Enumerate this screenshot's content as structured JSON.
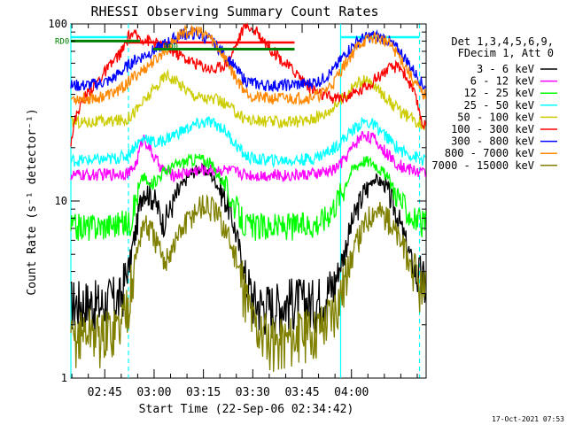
{
  "chart_data": {
    "type": "line",
    "title": "RHESSI Observing Summary Count Rates",
    "xlabel": "Start Time (22-Sep-06 02:34:42)",
    "ylabel": "Count Rate (s⁻¹ detector⁻¹)",
    "yscale": "log",
    "ylim": [
      1,
      100
    ],
    "xlim_minutes_after_start": [
      0,
      108
    ],
    "x_unit": "minutes after 02:34:42",
    "x_ticks": [
      {
        "label": "02:45",
        "value": 10.3
      },
      {
        "label": "03:00",
        "value": 25.3
      },
      {
        "label": "03:15",
        "value": 40.3
      },
      {
        "label": "03:30",
        "value": 55.3
      },
      {
        "label": "03:45",
        "value": 70.3
      },
      {
        "label": "04:00",
        "value": 85.3
      }
    ],
    "y_ticks": [
      {
        "label": "1",
        "value": 1
      },
      {
        "label": "10",
        "value": 10
      },
      {
        "label": "100",
        "value": 100
      }
    ],
    "legend_title": "Det 1,3,4,5,6,9,",
    "legend_subtitle": "FDecim 1, Att 0",
    "legend_position": "right",
    "series": [
      {
        "name": "3 - 6 keV",
        "color": "#000000",
        "x": [
          0,
          3,
          6,
          9,
          12,
          15,
          18,
          20,
          22,
          25,
          28,
          30,
          33,
          36,
          39,
          42,
          45,
          48,
          51,
          53,
          56,
          59,
          62,
          65,
          68,
          71,
          74,
          77,
          80,
          83,
          86,
          89,
          92,
          95,
          98,
          101,
          104,
          107
        ],
        "y": [
          2.7,
          2.7,
          2.7,
          2.6,
          2.8,
          2.8,
          4.5,
          7.2,
          11.8,
          10.5,
          7.5,
          8.8,
          11.5,
          14.0,
          15.3,
          14.5,
          12.0,
          9.2,
          5.6,
          3.6,
          2.7,
          2.6,
          2.6,
          2.7,
          2.8,
          2.7,
          2.7,
          3.0,
          3.4,
          5.0,
          8.0,
          11.0,
          13.5,
          12.5,
          9.5,
          6.5,
          4.2,
          3.5
        ]
      },
      {
        "name": "6 - 12 keV",
        "color": "#ff00ff",
        "x": [
          0,
          6,
          12,
          18,
          20,
          22,
          25,
          28,
          31,
          35,
          39,
          43,
          47,
          51,
          53,
          56,
          62,
          68,
          71,
          74,
          77,
          80,
          83,
          86,
          89,
          92,
          95,
          98,
          101,
          104,
          107
        ],
        "y": [
          14.0,
          14.0,
          14.2,
          14.5,
          16.5,
          23.0,
          18.0,
          15.0,
          14.0,
          14.5,
          15.0,
          15.0,
          15.0,
          14.5,
          14.2,
          14.0,
          14.0,
          14.0,
          14.1,
          14.2,
          14.5,
          15.0,
          17.0,
          20.5,
          24.0,
          22.5,
          19.5,
          17.0,
          15.5,
          15.0,
          14.5
        ]
      },
      {
        "name": "12 - 25 keV",
        "color": "#00ff00",
        "x": [
          0,
          6,
          12,
          18,
          20,
          22,
          24,
          28,
          32,
          36,
          39,
          42,
          45,
          48,
          51,
          53,
          56,
          62,
          68,
          71,
          74,
          77,
          80,
          83,
          86,
          89,
          92,
          95,
          98,
          101,
          104,
          107
        ],
        "y": [
          7.2,
          7.2,
          7.4,
          7.6,
          10.5,
          14.0,
          12.0,
          14.5,
          16.0,
          17.0,
          17.5,
          16.5,
          14.0,
          11.0,
          8.5,
          7.3,
          7.2,
          7.2,
          7.3,
          7.3,
          7.5,
          8.0,
          9.5,
          12.0,
          15.5,
          17.0,
          16.5,
          14.5,
          12.0,
          9.5,
          8.0,
          7.5
        ]
      },
      {
        "name": "25 - 50 keV",
        "color": "#00ffff",
        "x": [
          0,
          6,
          12,
          17,
          20,
          23,
          26,
          30,
          34,
          38,
          42,
          46,
          50,
          53,
          56,
          62,
          68,
          71,
          74,
          77,
          80,
          83,
          86,
          89,
          92,
          95,
          98,
          101,
          104,
          107
        ],
        "y": [
          17.0,
          17.0,
          17.2,
          18.0,
          21.0,
          23.0,
          21.0,
          23.0,
          25.0,
          27.0,
          28.0,
          26.0,
          21.0,
          18.0,
          17.2,
          17.0,
          17.0,
          17.2,
          17.5,
          18.5,
          20.0,
          22.5,
          25.5,
          28.0,
          27.0,
          24.0,
          21.0,
          19.0,
          18.0,
          17.0
        ]
      },
      {
        "name": "50 - 100 keV",
        "color": "#cccc00",
        "x": [
          0,
          6,
          12,
          17,
          20,
          23,
          26,
          29,
          33,
          37,
          41,
          45,
          49,
          52,
          55,
          62,
          68,
          71,
          74,
          77,
          80,
          83,
          86,
          89,
          92,
          95,
          98,
          101,
          104,
          107
        ],
        "y": [
          28.0,
          28.0,
          28.2,
          29.0,
          33.0,
          38.0,
          44.0,
          52.0,
          46.0,
          40.0,
          38.0,
          37.0,
          33.0,
          30.0,
          28.5,
          28.0,
          28.0,
          28.5,
          29.5,
          31.0,
          34.0,
          39.0,
          45.0,
          48.0,
          45.0,
          40.0,
          35.0,
          31.0,
          29.0,
          27.0
        ]
      },
      {
        "name": "100 - 300 keV",
        "color": "#ff0000",
        "x": [
          0,
          2,
          4,
          8,
          12,
          16,
          18,
          20,
          24,
          28,
          32,
          36,
          40,
          44,
          48,
          51,
          53,
          57,
          61,
          65,
          69,
          72,
          76,
          80,
          84,
          88,
          92,
          96,
          100,
          104,
          107
        ],
        "y": [
          22.0,
          32.0,
          38.0,
          47.0,
          58.0,
          72.0,
          88.0,
          85.0,
          80.0,
          75.0,
          69.0,
          62.0,
          58.0,
          55.0,
          62.0,
          82.0,
          100.0,
          88.0,
          72.0,
          60.0,
          52.0,
          45.0,
          40.0,
          38.0,
          39.0,
          42.0,
          48.0,
          55.0,
          58.0,
          42.0,
          27.0
        ]
      },
      {
        "name": "300 - 800 keV",
        "color": "#0000ff",
        "x": [
          0,
          4,
          8,
          12,
          16,
          19,
          22,
          26,
          30,
          34,
          38,
          42,
          46,
          50,
          53,
          56,
          60,
          64,
          68,
          72,
          76,
          80,
          84,
          88,
          92,
          96,
          100,
          104,
          107
        ],
        "y": [
          45.0,
          45.0,
          46.0,
          48.0,
          55.0,
          62.0,
          66.0,
          72.0,
          80.0,
          88.0,
          88.0,
          82.0,
          70.0,
          56.0,
          48.0,
          46.0,
          45.0,
          45.0,
          45.5,
          46.0,
          48.0,
          55.0,
          70.0,
          82.0,
          86.0,
          82.0,
          70.0,
          55.0,
          45.0
        ]
      },
      {
        "name": "800 - 7000 keV",
        "color": "#ff8800",
        "x": [
          0,
          4,
          8,
          12,
          16,
          19,
          22,
          26,
          30,
          34,
          38,
          42,
          46,
          50,
          53,
          56,
          60,
          64,
          68,
          72,
          76,
          80,
          84,
          88,
          92,
          96,
          100,
          104,
          107
        ],
        "y": [
          38.0,
          38.0,
          38.5,
          40.0,
          44.0,
          50.0,
          55.0,
          63.0,
          75.0,
          90.0,
          92.0,
          85.0,
          68.0,
          50.0,
          42.0,
          38.5,
          38.0,
          38.0,
          38.2,
          38.5,
          40.0,
          47.0,
          62.0,
          78.0,
          84.0,
          80.0,
          65.0,
          48.0,
          40.0
        ]
      },
      {
        "name": "7000 - 15000 keV",
        "color": "#808000",
        "x": [
          0,
          3,
          6,
          9,
          12,
          15,
          18,
          20,
          22,
          25,
          28,
          31,
          34,
          37,
          40,
          43,
          46,
          49,
          52,
          55,
          58,
          62,
          66,
          70,
          74,
          77,
          80,
          83,
          86,
          89,
          92,
          95,
          98,
          101,
          104,
          107
        ],
        "y": [
          1.6,
          1.8,
          1.9,
          1.7,
          1.9,
          2.0,
          3.0,
          5.0,
          7.5,
          6.5,
          4.5,
          5.5,
          7.0,
          8.5,
          9.5,
          9.0,
          7.5,
          5.5,
          3.5,
          2.2,
          1.8,
          1.6,
          1.7,
          1.8,
          1.9,
          2.1,
          2.5,
          3.4,
          5.2,
          7.2,
          9.0,
          8.5,
          7.0,
          5.5,
          4.0,
          3.0
        ]
      }
    ],
    "attenuator_lines": [
      {
        "label": "RD0",
        "color": "#008000",
        "start": 0,
        "end": 21,
        "value": 80
      },
      {
        "label": "RD0",
        "color": "#008000",
        "start": 25,
        "end": 68,
        "value": 72
      }
    ],
    "vertical_markers_minutes": [
      {
        "style": "solid",
        "color": "#00ffff",
        "value": 0
      },
      {
        "style": "dashed",
        "color": "#00ffff",
        "value": 17.5
      },
      {
        "style": "solid",
        "color": "#00ffff",
        "value": 82
      },
      {
        "style": "dashed",
        "color": "#00ffff",
        "value": 106
      }
    ],
    "top_segments": [
      {
        "color": "#00ffff",
        "start": 0,
        "end": 17.5
      },
      {
        "color": "#00ffff",
        "start": 82,
        "end": 106
      },
      {
        "color": "#ff0000",
        "start": 17.5,
        "end": 49
      },
      {
        "color": "#ff0000",
        "start": 49,
        "end": 68
      }
    ]
  },
  "footer": {
    "timestamp": "17-Oct-2021 07:53"
  }
}
